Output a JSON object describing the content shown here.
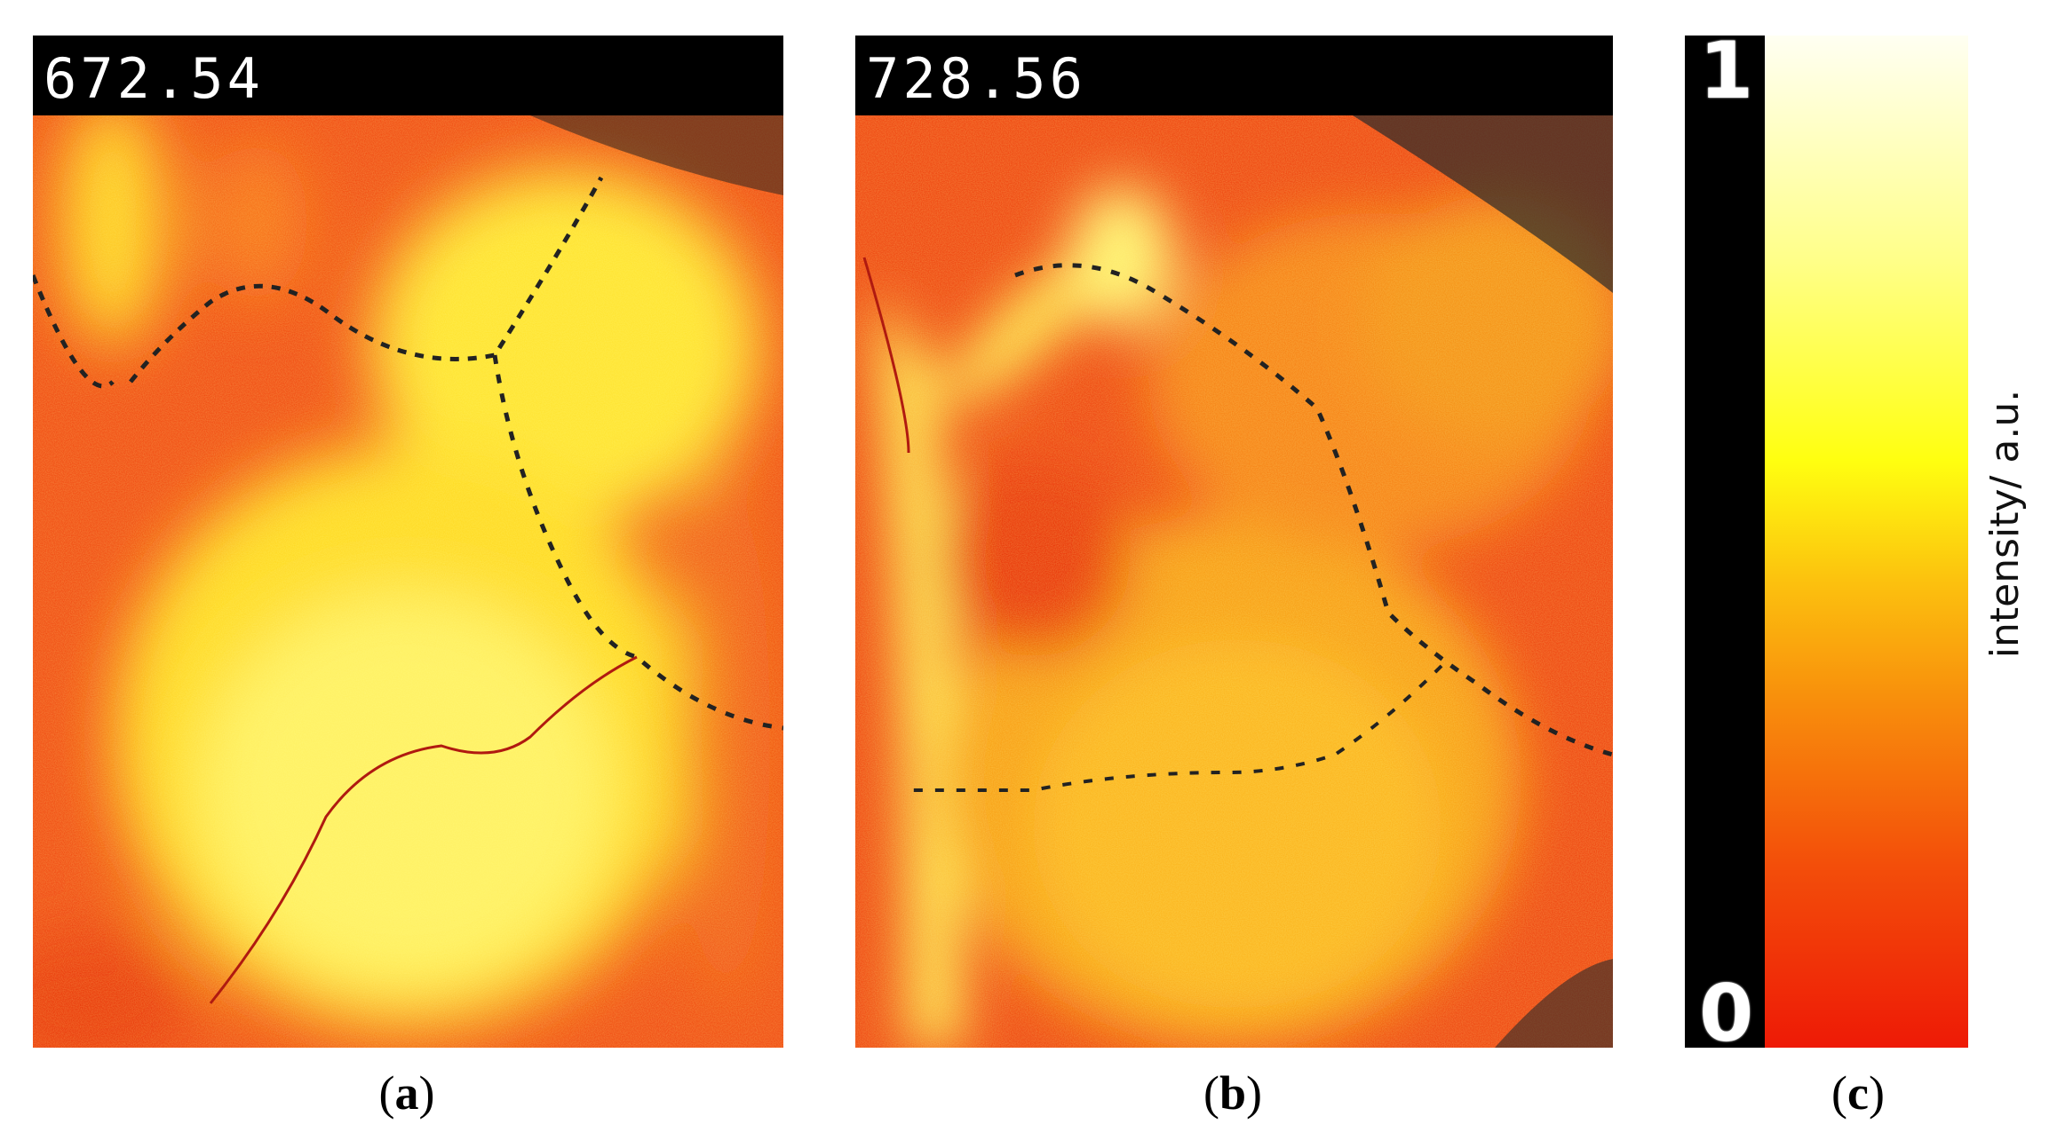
{
  "panels": [
    {
      "id": "a",
      "header_value": "672.54",
      "caption_letter": "a"
    },
    {
      "id": "b",
      "header_value": "728.56",
      "caption_letter": "b"
    }
  ],
  "colorbar": {
    "max_label": "1",
    "min_label": "0",
    "axis_label": "intensity/ a.u.",
    "caption_letter": "c",
    "colors": [
      "#ee1a06",
      "#f88d0c",
      "#ffff10",
      "#fffff2"
    ]
  }
}
